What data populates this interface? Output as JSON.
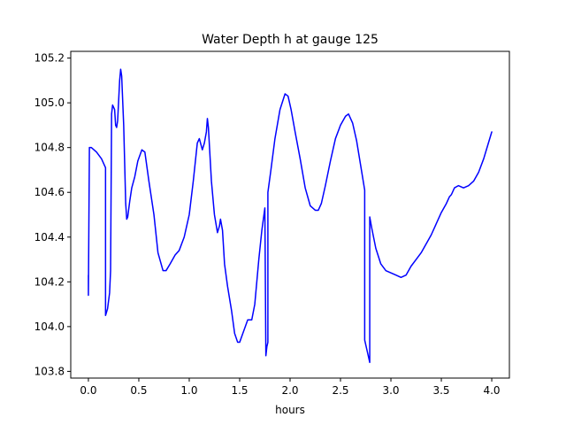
{
  "chart_data": {
    "type": "line",
    "title": "Water Depth h at gauge 125",
    "xlabel": "hours",
    "ylabel": "",
    "xlim": [
      -0.175,
      4.175
    ],
    "ylim": [
      103.77,
      105.23
    ],
    "xticks": [
      0.0,
      0.5,
      1.0,
      1.5,
      2.0,
      2.5,
      3.0,
      3.5,
      4.0
    ],
    "xtick_labels": [
      "0.0",
      "0.5",
      "1.0",
      "1.5",
      "2.0",
      "2.5",
      "3.0",
      "3.5",
      "4.0"
    ],
    "yticks": [
      103.8,
      104.0,
      104.2,
      104.4,
      104.6,
      104.8,
      105.0,
      105.2
    ],
    "ytick_labels": [
      "103.8",
      "104.0",
      "104.2",
      "104.4",
      "104.6",
      "104.8",
      "105.0",
      "105.2"
    ],
    "grid": false,
    "series": [
      {
        "color": "#0000ff",
        "points": [
          [
            0.0,
            104.23
          ],
          [
            0.0,
            104.14
          ],
          [
            0.01,
            104.8
          ],
          [
            0.03,
            104.8
          ],
          [
            0.08,
            104.78
          ],
          [
            0.13,
            104.75
          ],
          [
            0.17,
            104.71
          ],
          [
            0.17,
            104.05
          ],
          [
            0.19,
            104.08
          ],
          [
            0.21,
            104.15
          ],
          [
            0.22,
            104.25
          ],
          [
            0.23,
            104.95
          ],
          [
            0.24,
            104.99
          ],
          [
            0.26,
            104.97
          ],
          [
            0.27,
            104.9
          ],
          [
            0.28,
            104.89
          ],
          [
            0.29,
            104.92
          ],
          [
            0.31,
            105.1
          ],
          [
            0.32,
            105.15
          ],
          [
            0.33,
            105.12
          ],
          [
            0.35,
            104.9
          ],
          [
            0.37,
            104.55
          ],
          [
            0.38,
            104.48
          ],
          [
            0.39,
            104.49
          ],
          [
            0.41,
            104.56
          ],
          [
            0.43,
            104.62
          ],
          [
            0.46,
            104.67
          ],
          [
            0.49,
            104.74
          ],
          [
            0.53,
            104.79
          ],
          [
            0.56,
            104.78
          ],
          [
            0.6,
            104.65
          ],
          [
            0.65,
            104.5
          ],
          [
            0.69,
            104.33
          ],
          [
            0.74,
            104.25
          ],
          [
            0.77,
            104.25
          ],
          [
            0.81,
            104.28
          ],
          [
            0.86,
            104.32
          ],
          [
            0.9,
            104.34
          ],
          [
            0.95,
            104.4
          ],
          [
            1.0,
            104.5
          ],
          [
            1.04,
            104.65
          ],
          [
            1.08,
            104.82
          ],
          [
            1.1,
            104.84
          ],
          [
            1.13,
            104.79
          ],
          [
            1.15,
            104.82
          ],
          [
            1.17,
            104.87
          ],
          [
            1.18,
            104.93
          ],
          [
            1.19,
            104.89
          ],
          [
            1.22,
            104.65
          ],
          [
            1.25,
            104.5
          ],
          [
            1.28,
            104.42
          ],
          [
            1.3,
            104.45
          ],
          [
            1.31,
            104.48
          ],
          [
            1.33,
            104.43
          ],
          [
            1.35,
            104.28
          ],
          [
            1.38,
            104.18
          ],
          [
            1.42,
            104.07
          ],
          [
            1.45,
            103.97
          ],
          [
            1.48,
            103.93
          ],
          [
            1.5,
            103.93
          ],
          [
            1.54,
            103.98
          ],
          [
            1.58,
            104.03
          ],
          [
            1.62,
            104.03
          ],
          [
            1.65,
            104.1
          ],
          [
            1.69,
            104.3
          ],
          [
            1.72,
            104.43
          ],
          [
            1.75,
            104.53
          ],
          [
            1.76,
            103.87
          ],
          [
            1.77,
            103.91
          ],
          [
            1.78,
            103.93
          ],
          [
            1.78,
            104.6
          ],
          [
            1.81,
            104.7
          ],
          [
            1.85,
            104.84
          ],
          [
            1.9,
            104.97
          ],
          [
            1.95,
            105.04
          ],
          [
            1.98,
            105.03
          ],
          [
            2.01,
            104.97
          ],
          [
            2.05,
            104.87
          ],
          [
            2.1,
            104.75
          ],
          [
            2.15,
            104.62
          ],
          [
            2.2,
            104.54
          ],
          [
            2.25,
            104.52
          ],
          [
            2.28,
            104.52
          ],
          [
            2.31,
            104.55
          ],
          [
            2.35,
            104.63
          ],
          [
            2.4,
            104.74
          ],
          [
            2.45,
            104.84
          ],
          [
            2.5,
            104.9
          ],
          [
            2.55,
            104.94
          ],
          [
            2.58,
            104.95
          ],
          [
            2.62,
            104.91
          ],
          [
            2.66,
            104.83
          ],
          [
            2.7,
            104.72
          ],
          [
            2.74,
            104.61
          ],
          [
            2.74,
            103.94
          ],
          [
            2.76,
            103.9
          ],
          [
            2.78,
            103.86
          ],
          [
            2.79,
            103.84
          ],
          [
            2.79,
            104.49
          ],
          [
            2.81,
            104.44
          ],
          [
            2.85,
            104.35
          ],
          [
            2.9,
            104.28
          ],
          [
            2.95,
            104.25
          ],
          [
            3.0,
            104.24
          ],
          [
            3.05,
            104.23
          ],
          [
            3.1,
            104.22
          ],
          [
            3.15,
            104.23
          ],
          [
            3.2,
            104.27
          ],
          [
            3.25,
            104.3
          ],
          [
            3.3,
            104.33
          ],
          [
            3.35,
            104.37
          ],
          [
            3.4,
            104.41
          ],
          [
            3.45,
            104.46
          ],
          [
            3.5,
            104.51
          ],
          [
            3.55,
            104.55
          ],
          [
            3.58,
            104.58
          ],
          [
            3.6,
            104.59
          ],
          [
            3.63,
            104.62
          ],
          [
            3.67,
            104.63
          ],
          [
            3.72,
            104.62
          ],
          [
            3.77,
            104.63
          ],
          [
            3.82,
            104.65
          ],
          [
            3.87,
            104.69
          ],
          [
            3.92,
            104.75
          ],
          [
            3.96,
            104.81
          ],
          [
            4.0,
            104.87
          ]
        ]
      }
    ]
  }
}
